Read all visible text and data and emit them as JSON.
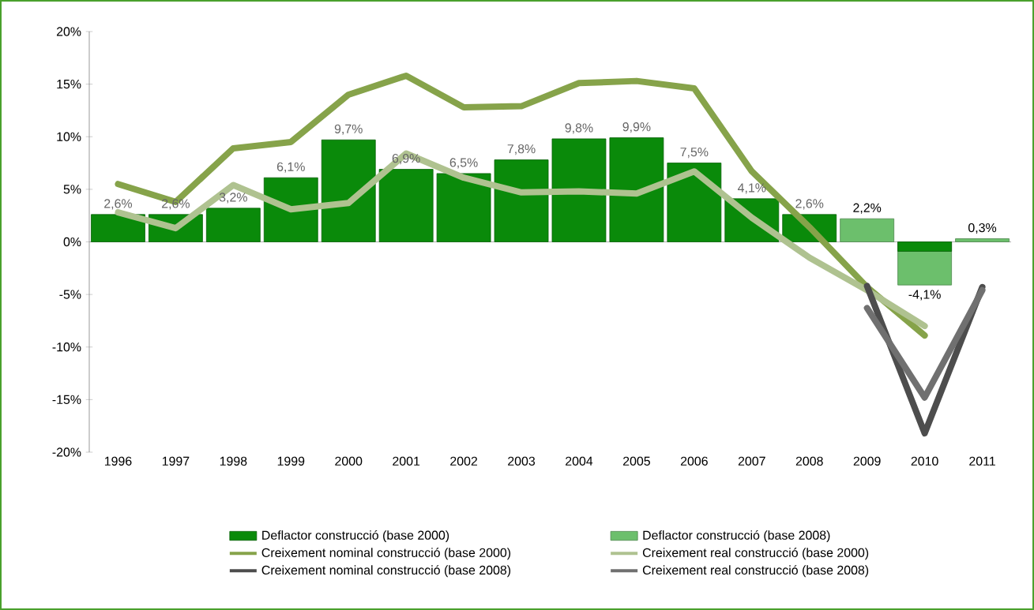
{
  "chart_data": {
    "type": "bar",
    "categories": [
      "1996",
      "1997",
      "1998",
      "1999",
      "2000",
      "2001",
      "2002",
      "2003",
      "2004",
      "2005",
      "2006",
      "2007",
      "2008",
      "2009",
      "2010",
      "2011"
    ],
    "ylim": [
      -20,
      20
    ],
    "yticks": [
      {
        "value": -20,
        "label": "-20%"
      },
      {
        "value": -15,
        "label": "-15%"
      },
      {
        "value": -10,
        "label": "-10%"
      },
      {
        "value": -5,
        "label": "-5%"
      },
      {
        "value": 0,
        "label": "0%"
      },
      {
        "value": 5,
        "label": "5%"
      },
      {
        "value": 10,
        "label": "10%"
      },
      {
        "value": 15,
        "label": "15%"
      },
      {
        "value": 20,
        "label": "20%"
      }
    ],
    "legend": "bottom",
    "series": [
      {
        "name": "Deflactor construcció (base 2000)",
        "color": "#0a8a0a",
        "values": [
          2.6,
          2.6,
          3.2,
          6.1,
          9.7,
          6.9,
          6.5,
          7.8,
          9.8,
          9.9,
          7.5,
          4.1,
          2.6,
          null,
          -0.9,
          null
        ],
        "value_labels": [
          "2,6%",
          "2,6%",
          "3,2%",
          "6,1%",
          "9,7%",
          "6,9%",
          "6,5%",
          "7,8%",
          "9,8%",
          "9,9%",
          "7,5%",
          "4,1%",
          "2,6%",
          null,
          null,
          null
        ]
      },
      {
        "name": "Deflactor construcció (base 2008)",
        "color": "#6cbf6c",
        "values": [
          null,
          null,
          null,
          null,
          null,
          null,
          null,
          null,
          null,
          null,
          null,
          null,
          null,
          2.2,
          -4.1,
          0.3
        ],
        "value_labels": [
          null,
          null,
          null,
          null,
          null,
          null,
          null,
          null,
          null,
          null,
          null,
          null,
          null,
          "2,2%",
          "-4,1%",
          "0,3%"
        ]
      },
      {
        "name": "Creixement nominal construcció (base 2000)",
        "type": "line",
        "color": "#86a34a",
        "values": [
          5.5,
          3.8,
          8.9,
          9.5,
          14.0,
          15.8,
          12.8,
          12.9,
          15.1,
          15.3,
          14.6,
          6.7,
          1.4,
          -4.3,
          -8.9,
          null
        ]
      },
      {
        "name": "Creixement real construcció (base 2000)",
        "type": "line",
        "color": "#afc290",
        "values": [
          2.8,
          1.3,
          5.4,
          3.1,
          3.7,
          8.4,
          6.1,
          4.7,
          4.8,
          4.6,
          6.7,
          2.3,
          -1.5,
          -4.6,
          -8.0,
          null
        ]
      },
      {
        "name": "Creixement nominal construcció (base 2008)",
        "type": "line",
        "color": "#4d4d4d",
        "values": [
          null,
          null,
          null,
          null,
          null,
          null,
          null,
          null,
          null,
          null,
          null,
          null,
          null,
          -4.2,
          -18.2,
          -4.3
        ]
      },
      {
        "name": "Creixement real construcció (base 2008)",
        "type": "line",
        "color": "#707070",
        "values": [
          null,
          null,
          null,
          null,
          null,
          null,
          null,
          null,
          null,
          null,
          null,
          null,
          null,
          -6.3,
          -14.8,
          -4.6
        ]
      }
    ]
  }
}
